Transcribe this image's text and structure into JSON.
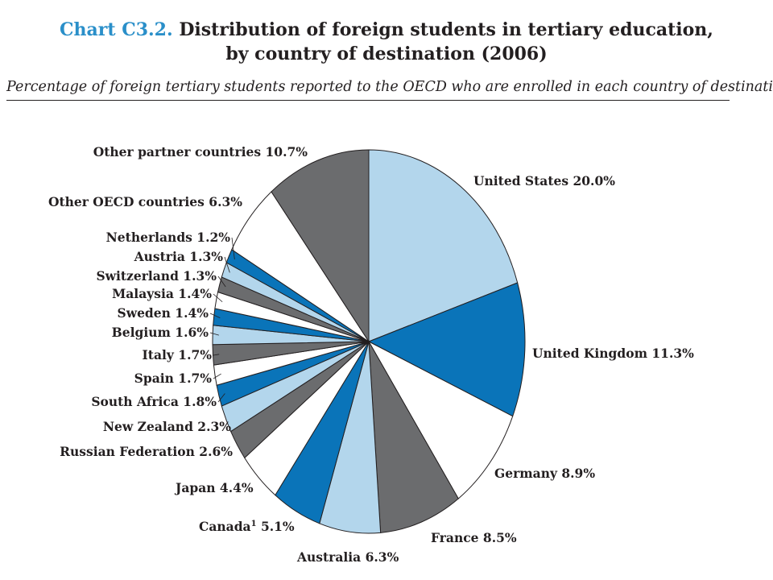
{
  "header": {
    "chart_id": "Chart C3.2.",
    "title_line1": "Distribution of foreign students in tertiary education,",
    "title_line2": "by country of destination (2006)",
    "subtitle": "Percentage of foreign tertiary students reported to the OECD who are enrolled in each country of destination"
  },
  "colors": {
    "light_blue": "#b3d6ec",
    "blue": "#0a74b9",
    "white": "#ffffff",
    "grey": "#6b6c6e",
    "outline": "#231f20"
  },
  "chart_data": {
    "type": "pie",
    "title": "Distribution of foreign students in tertiary education, by country of destination (2006)",
    "unit": "%",
    "slices": [
      {
        "label": "United States",
        "value": 20.0,
        "value_text": "20.0%",
        "color": "light_blue"
      },
      {
        "label": "United Kingdom",
        "value": 11.3,
        "value_text": "11.3%",
        "color": "blue"
      },
      {
        "label": "Germany",
        "value": 8.9,
        "value_text": "8.9%",
        "color": "white"
      },
      {
        "label": "France",
        "value": 8.5,
        "value_text": "8.5%",
        "color": "grey"
      },
      {
        "label": "Australia",
        "value": 6.3,
        "value_text": "6.3%",
        "color": "light_blue"
      },
      {
        "label": "Canada",
        "footnote": "1",
        "value": 5.1,
        "value_text": "5.1%",
        "color": "blue"
      },
      {
        "label": "Japan",
        "value": 4.4,
        "value_text": "4.4%",
        "color": "white"
      },
      {
        "label": "Russian Federation",
        "value": 2.6,
        "value_text": "2.6%",
        "color": "grey"
      },
      {
        "label": "New Zealand",
        "value": 2.3,
        "value_text": "2.3%",
        "color": "light_blue"
      },
      {
        "label": "South Africa",
        "value": 1.8,
        "value_text": "1.8%",
        "color": "blue"
      },
      {
        "label": "Spain",
        "value": 1.7,
        "value_text": "1.7%",
        "color": "white"
      },
      {
        "label": "Italy",
        "value": 1.7,
        "value_text": "1.7%",
        "color": "grey"
      },
      {
        "label": "Belgium",
        "value": 1.6,
        "value_text": "1.6%",
        "color": "light_blue"
      },
      {
        "label": "Sweden",
        "value": 1.4,
        "value_text": "1.4%",
        "color": "blue"
      },
      {
        "label": "Malaysia",
        "value": 1.4,
        "value_text": "1.4%",
        "color": "white"
      },
      {
        "label": "Switzerland",
        "value": 1.3,
        "value_text": "1.3%",
        "color": "grey"
      },
      {
        "label": "Austria",
        "value": 1.3,
        "value_text": "1.3%",
        "color": "light_blue"
      },
      {
        "label": "Netherlands",
        "value": 1.2,
        "value_text": "1.2%",
        "color": "blue"
      },
      {
        "label": "Other OECD countries",
        "value": 6.3,
        "value_text": "6.3%",
        "color": "white"
      },
      {
        "label": "Other partner countries",
        "value": 10.7,
        "value_text": "10.7%",
        "color": "grey"
      }
    ]
  }
}
